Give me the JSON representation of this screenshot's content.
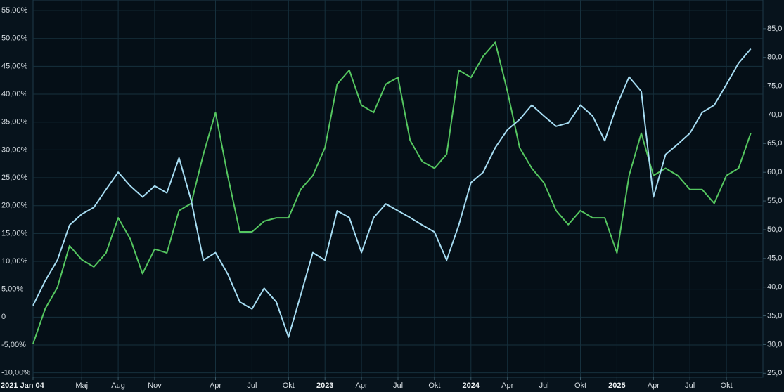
{
  "chart_data": {
    "type": "line",
    "categories": [
      "2021 Jan 04",
      null,
      null,
      null,
      "Maj",
      null,
      null,
      "Aug",
      null,
      null,
      "Nov",
      null,
      null,
      null,
      null,
      "Apr",
      null,
      null,
      "Jul",
      null,
      null,
      "Okt",
      null,
      null,
      "2023",
      null,
      null,
      "Apr",
      null,
      null,
      "Jul",
      null,
      null,
      "Okt",
      null,
      null,
      "2024",
      null,
      null,
      "Apr",
      null,
      null,
      "Jul",
      null,
      null,
      "Okt",
      null,
      null,
      "2025",
      null,
      null,
      "Apr",
      null,
      null,
      "Jul",
      null,
      null,
      "Okt",
      null,
      null
    ],
    "series": [
      {
        "name": null,
        "color": "#55c660",
        "axis": "y",
        "values": [
          -4.8,
          1.5,
          5.3,
          12.8,
          10.3,
          9.0,
          11.5,
          17.8,
          14.0,
          7.8,
          12.2,
          11.5,
          19.1,
          20.4,
          29.2,
          36.7,
          25.4,
          15.3,
          15.3,
          17.2,
          17.8,
          17.8,
          22.9,
          25.4,
          30.4,
          41.8,
          44.3,
          38.0,
          36.7,
          41.8,
          43.0,
          31.7,
          27.9,
          26.7,
          29.2,
          44.3,
          43.0,
          46.8,
          49.3,
          40.5,
          30.4,
          26.7,
          24.1,
          19.1,
          16.6,
          19.1,
          17.8,
          17.8,
          11.5,
          25.4,
          33.0,
          25.4,
          26.7,
          25.4,
          22.9,
          22.9,
          20.4,
          25.4,
          26.7,
          33.0
        ]
      },
      {
        "name": null,
        "color": "#a6dcf2",
        "axis": "y2",
        "values": [
          36.8,
          41.1,
          44.7,
          50.8,
          52.7,
          53.9,
          57.0,
          60.0,
          57.6,
          55.7,
          57.6,
          56.4,
          62.5,
          55.1,
          44.7,
          46.0,
          42.3,
          37.4,
          36.2,
          39.8,
          37.4,
          31.3,
          38.6,
          46.0,
          44.7,
          53.3,
          52.1,
          46.0,
          52.1,
          54.5,
          53.3,
          52.1,
          50.8,
          49.6,
          44.7,
          50.8,
          58.2,
          60.0,
          64.3,
          67.4,
          69.2,
          71.7,
          69.8,
          68.0,
          68.6,
          71.7,
          69.8,
          65.5,
          71.7,
          76.6,
          74.1,
          55.7,
          63.1,
          64.9,
          66.8,
          70.4,
          71.7,
          75.3,
          79.0,
          81.5
        ]
      }
    ],
    "ylim": [
      -10.8,
      56.9
    ],
    "yticks": [
      {
        "value": 55,
        "label": "55,00%"
      },
      {
        "value": 50,
        "label": "50,00%"
      },
      {
        "value": 45,
        "label": "45,00%"
      },
      {
        "value": 40,
        "label": "40,00%"
      },
      {
        "value": 35,
        "label": "35,00%"
      },
      {
        "value": 30,
        "label": "30,00%"
      },
      {
        "value": 25,
        "label": "25,00%"
      },
      {
        "value": 20,
        "label": "20,00%"
      },
      {
        "value": 15,
        "label": "15,00%"
      },
      {
        "value": 10,
        "label": "10,00%"
      },
      {
        "value": 5,
        "label": "5,00%"
      },
      0,
      {
        "value": -5,
        "label": "-5,00%"
      },
      {
        "value": -10,
        "label": "-10,00%"
      }
    ],
    "y2lim": [
      24.3,
      90.0
    ],
    "y2ticks": [
      {
        "value": 85,
        "label": "85,0"
      },
      {
        "value": 80,
        "label": "80,0"
      },
      {
        "value": 75,
        "label": "75,0"
      },
      {
        "value": 70,
        "label": "70,0"
      },
      {
        "value": 65,
        "label": "65,0"
      },
      {
        "value": 60,
        "label": "60,0"
      },
      {
        "value": 55,
        "label": "55,0"
      },
      {
        "value": 50,
        "label": "50,0"
      },
      {
        "value": 45,
        "label": "45,0"
      },
      {
        "value": 40,
        "label": "40,0"
      },
      {
        "value": 35,
        "label": "35,0"
      },
      {
        "value": 30,
        "label": "30,0"
      },
      {
        "value": 25,
        "label": "25,0"
      }
    ],
    "grid": true
  }
}
